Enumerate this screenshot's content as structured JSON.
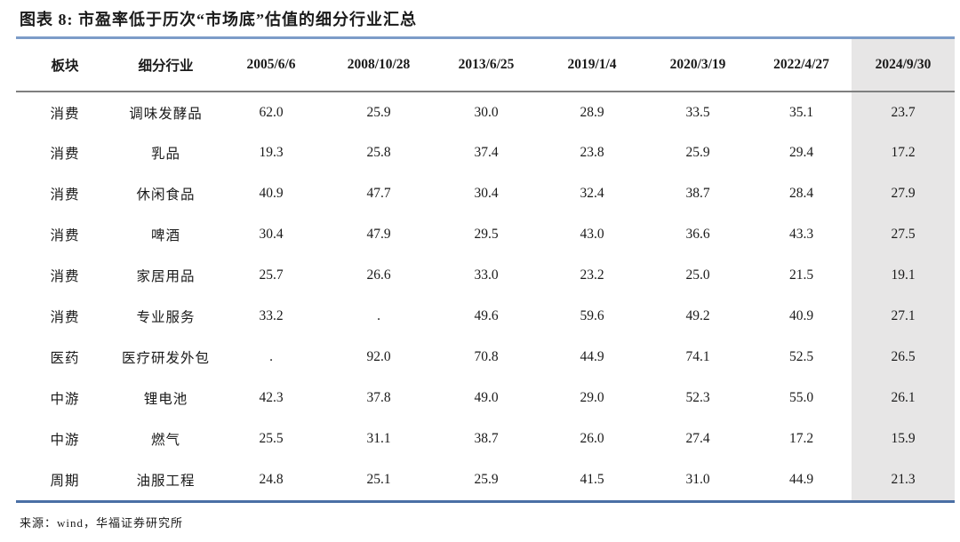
{
  "header": {
    "title": "图表 8: 市盈率低于历次“市场底”估值的细分行业汇总"
  },
  "table": {
    "columns": [
      "板块",
      "细分行业",
      "2005/6/6",
      "2008/10/28",
      "2013/6/25",
      "2019/1/4",
      "2020/3/19",
      "2022/4/27",
      "2024/9/30"
    ],
    "highlight_column": "2024/9/30",
    "rows": [
      {
        "sector": "消费",
        "industry": "调味发酵品",
        "values": [
          "62.0",
          "25.9",
          "30.0",
          "28.9",
          "33.5",
          "35.1",
          "23.7"
        ]
      },
      {
        "sector": "消费",
        "industry": "乳品",
        "values": [
          "19.3",
          "25.8",
          "37.4",
          "23.8",
          "25.9",
          "29.4",
          "17.2"
        ]
      },
      {
        "sector": "消费",
        "industry": "休闲食品",
        "values": [
          "40.9",
          "47.7",
          "30.4",
          "32.4",
          "38.7",
          "28.4",
          "27.9"
        ]
      },
      {
        "sector": "消费",
        "industry": "啤酒",
        "values": [
          "30.4",
          "47.9",
          "29.5",
          "43.0",
          "36.6",
          "43.3",
          "27.5"
        ]
      },
      {
        "sector": "消费",
        "industry": "家居用品",
        "values": [
          "25.7",
          "26.6",
          "33.0",
          "23.2",
          "25.0",
          "21.5",
          "19.1"
        ]
      },
      {
        "sector": "消费",
        "industry": "专业服务",
        "values": [
          "33.2",
          ".",
          "49.6",
          "59.6",
          "49.2",
          "40.9",
          "27.1"
        ]
      },
      {
        "sector": "医药",
        "industry": "医疗研发外包",
        "values": [
          ".",
          "92.0",
          "70.8",
          "44.9",
          "74.1",
          "52.5",
          "26.5"
        ]
      },
      {
        "sector": "中游",
        "industry": "锂电池",
        "values": [
          "42.3",
          "37.8",
          "49.0",
          "29.0",
          "52.3",
          "55.0",
          "26.1"
        ]
      },
      {
        "sector": "中游",
        "industry": "燃气",
        "values": [
          "25.5",
          "31.1",
          "38.7",
          "26.0",
          "27.4",
          "17.2",
          "15.9"
        ]
      },
      {
        "sector": "周期",
        "industry": "油服工程",
        "values": [
          "24.8",
          "25.1",
          "25.9",
          "41.5",
          "31.0",
          "44.9",
          "21.3"
        ]
      }
    ]
  },
  "footer": {
    "source": "来源：wind，华福证券研究所"
  },
  "colors": {
    "top_rule": "#7C9CC8",
    "header_rule": "#7F7F7F",
    "bottom_rule": "#4A6FA5",
    "hl_bg": "#E7E6E6",
    "text": "#1A1A1A"
  }
}
